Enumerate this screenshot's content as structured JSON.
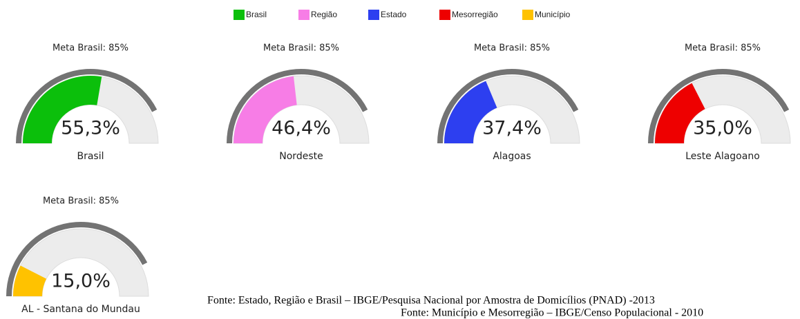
{
  "legend": [
    {
      "name": "Brasil",
      "color": "#0bbf0b"
    },
    {
      "name": "Região",
      "color": "#f77de6"
    },
    {
      "name": "Estado",
      "color": "#2d3ff0"
    },
    {
      "name": "Mesorregião",
      "color": "#ee0000"
    },
    {
      "name": "Município",
      "color": "#ffc200"
    }
  ],
  "chart_data": [
    {
      "type": "gauge",
      "title": "Meta Brasil: 85%",
      "target": 85,
      "ylim": [
        0,
        100
      ],
      "categories": [
        "Brasil"
      ],
      "values": [
        55.3
      ],
      "value_labels": [
        "55,3%"
      ],
      "color": "#0bbf0b"
    },
    {
      "type": "gauge",
      "title": "Meta Brasil: 85%",
      "target": 85,
      "ylim": [
        0,
        100
      ],
      "categories": [
        "Nordeste"
      ],
      "values": [
        46.4
      ],
      "value_labels": [
        "46,4%"
      ],
      "color": "#f77de6"
    },
    {
      "type": "gauge",
      "title": "Meta Brasil: 85%",
      "target": 85,
      "ylim": [
        0,
        100
      ],
      "categories": [
        "Alagoas"
      ],
      "values": [
        37.4
      ],
      "value_labels": [
        "37,4%"
      ],
      "color": "#2d3ff0"
    },
    {
      "type": "gauge",
      "title": "Meta Brasil: 85%",
      "target": 85,
      "ylim": [
        0,
        100
      ],
      "categories": [
        "Leste Alagoano"
      ],
      "values": [
        35.0
      ],
      "value_labels": [
        "35,0%"
      ],
      "color": "#ee0000"
    },
    {
      "type": "gauge",
      "title": "Meta Brasil: 85%",
      "target": 85,
      "ylim": [
        0,
        100
      ],
      "categories": [
        "AL - Santana do Mundau"
      ],
      "values": [
        15.0
      ],
      "value_labels": [
        "15,0%"
      ],
      "color": "#ffc200"
    }
  ],
  "footnotes": [
    "Fonte: Estado, Região e Brasil – IBGE/Pesquisa Nacional por Amostra de Domicílios (PNAD) -2013",
    "Fonte: Município e Mesorregião – IBGE/Censo Populacional - 2010"
  ]
}
